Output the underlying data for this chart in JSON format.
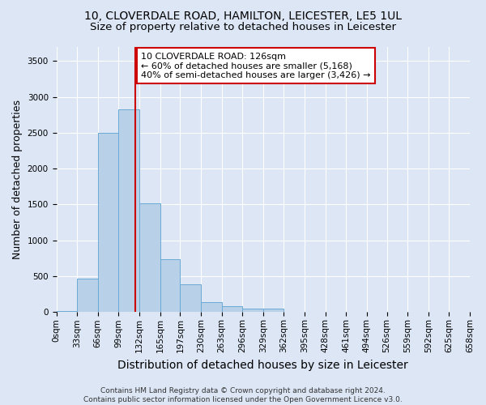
{
  "title_line1": "10, CLOVERDALE ROAD, HAMILTON, LEICESTER, LE5 1UL",
  "title_line2": "Size of property relative to detached houses in Leicester",
  "xlabel": "Distribution of detached houses by size in Leicester",
  "ylabel": "Number of detached properties",
  "bin_labels": [
    "0sqm",
    "33sqm",
    "66sqm",
    "99sqm",
    "132sqm",
    "165sqm",
    "197sqm",
    "230sqm",
    "263sqm",
    "296sqm",
    "329sqm",
    "362sqm",
    "395sqm",
    "428sqm",
    "461sqm",
    "494sqm",
    "526sqm",
    "559sqm",
    "592sqm",
    "625sqm",
    "658sqm"
  ],
  "bin_edges": [
    0,
    33,
    66,
    99,
    132,
    165,
    197,
    230,
    263,
    296,
    329,
    362,
    395,
    428,
    461,
    494,
    526,
    559,
    592,
    625,
    658
  ],
  "bar_values": [
    20,
    470,
    2500,
    2820,
    1520,
    740,
    390,
    140,
    80,
    55,
    55,
    0,
    0,
    0,
    0,
    0,
    0,
    0,
    0,
    0
  ],
  "bar_color": "#b8d0e8",
  "bar_edgecolor": "#6aaad4",
  "property_size": 126,
  "vline_color": "#cc0000",
  "annotation_text": "10 CLOVERDALE ROAD: 126sqm\n← 60% of detached houses are smaller (5,168)\n40% of semi-detached houses are larger (3,426) →",
  "annotation_box_color": "#ffffff",
  "annotation_box_edgecolor": "#cc0000",
  "ylim": [
    0,
    3700
  ],
  "yticks": [
    0,
    500,
    1000,
    1500,
    2000,
    2500,
    3000,
    3500
  ],
  "background_color": "#dce6f5",
  "axes_background_color": "#dce6f5",
  "footer_text": "Contains HM Land Registry data © Crown copyright and database right 2024.\nContains public sector information licensed under the Open Government Licence v3.0.",
  "title_fontsize": 10,
  "subtitle_fontsize": 9.5,
  "axis_label_fontsize": 9,
  "tick_fontsize": 7.5,
  "annotation_fontsize": 8,
  "footer_fontsize": 6.5
}
